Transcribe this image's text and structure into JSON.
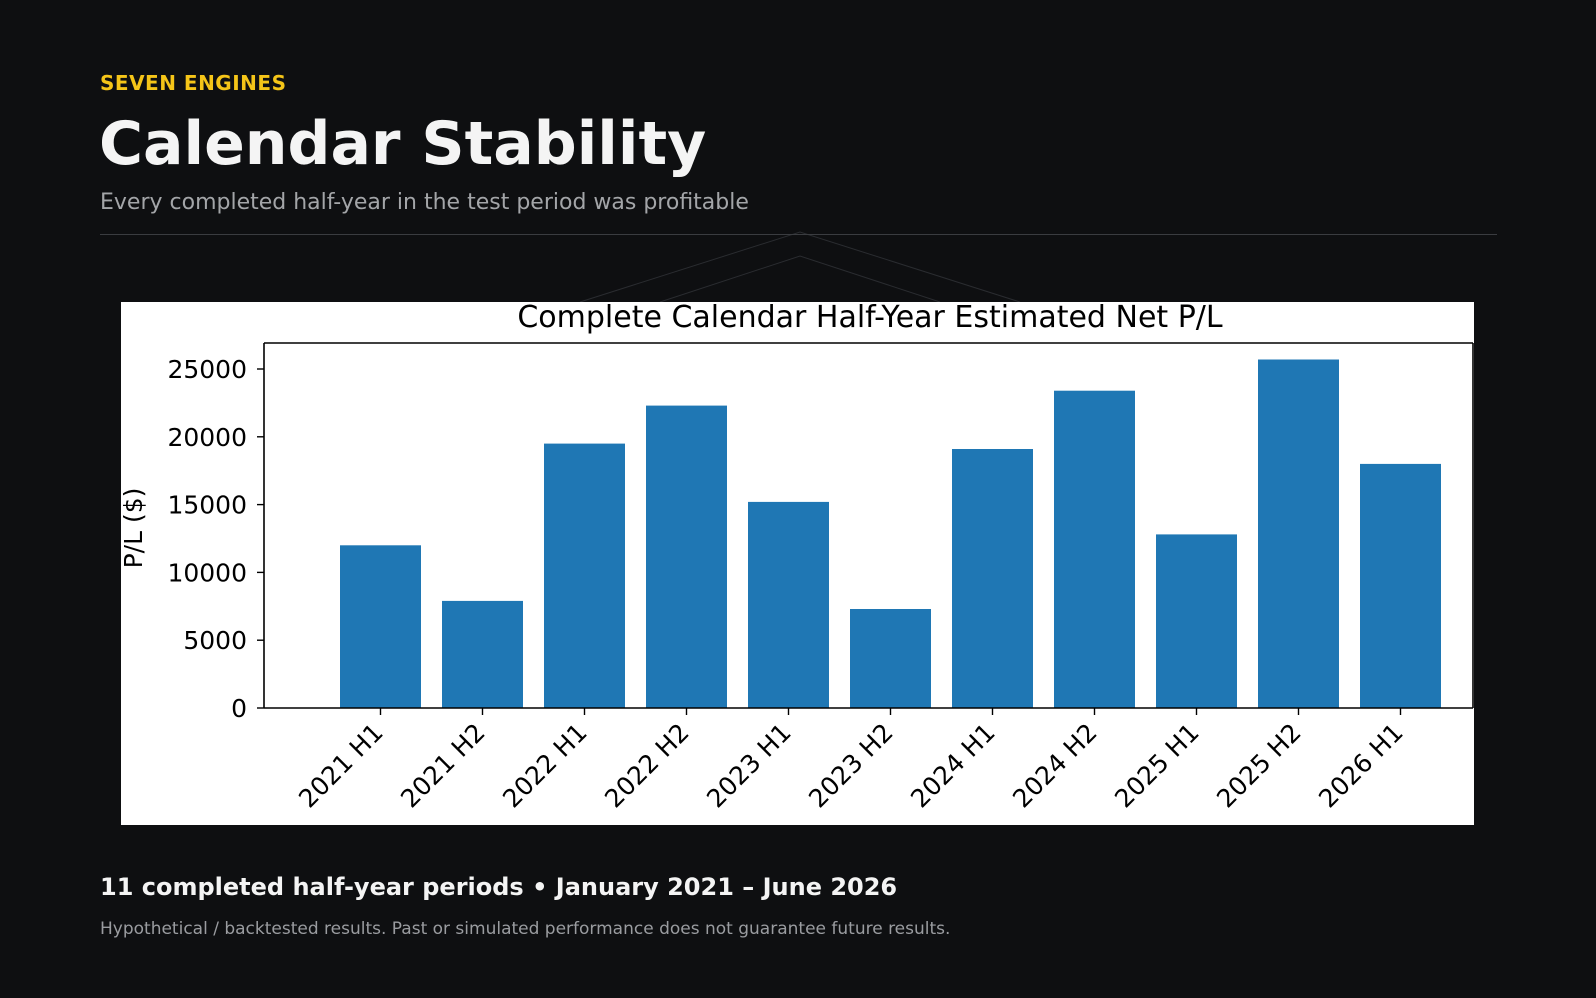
{
  "header": {
    "kicker": "SEVEN ENGINES",
    "title": "Calendar Stability",
    "subtitle": "Every completed half-year in the test period was profitable"
  },
  "footer": {
    "summary": "11 completed half-year periods • January 2021 – June 2026",
    "disclaimer": "Hypothetical / backtested results. Past or simulated performance does not guarantee future results."
  },
  "colors": {
    "background": "#0e0f11",
    "accent": "#f5c518",
    "bar": "#1f77b4"
  },
  "chart_data": {
    "type": "bar",
    "title": "Complete Calendar Half-Year Estimated Net P/L",
    "xlabel": "",
    "ylabel": "P/L ($)",
    "categories": [
      "2021 H1",
      "2021 H2",
      "2022 H1",
      "2022 H2",
      "2023 H1",
      "2023 H2",
      "2024 H1",
      "2024 H2",
      "2025 H1",
      "2025 H2",
      "2026 H1"
    ],
    "values": [
      12000,
      7900,
      19500,
      22300,
      15200,
      7300,
      19100,
      23400,
      12800,
      25700,
      18000
    ],
    "yticks": [
      0,
      5000,
      10000,
      15000,
      20000,
      25000
    ],
    "ylim": [
      0,
      27000
    ],
    "grid": false,
    "legend": "none"
  }
}
